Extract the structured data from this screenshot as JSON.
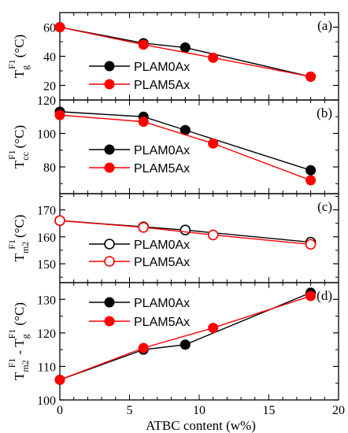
{
  "colors": {
    "PLAM0Ax": "#000000",
    "PLAM5Ax": "#ff0000",
    "axis": "#000000"
  },
  "chart_data": [
    {
      "type": "line",
      "panel_label": "(a)",
      "ylabel": {
        "main": "T",
        "sub": "g",
        "sup": "F1",
        "unit": "(°C)"
      },
      "ylim": [
        10,
        70
      ],
      "yticks": [
        20,
        40,
        60
      ],
      "xlim": [
        0,
        20
      ],
      "legend_position": "center-left",
      "series": [
        {
          "name": "PLAM0Ax",
          "color": "#000000",
          "marker": "filled",
          "x": [
            0,
            6,
            9,
            11,
            18
          ],
          "y": [
            60,
            49,
            46,
            null,
            26
          ]
        },
        {
          "name": "PLAM5Ax",
          "color": "#ff0000",
          "marker": "filled",
          "x": [
            0,
            6,
            9,
            11,
            18
          ],
          "y": [
            60,
            48,
            null,
            39,
            26
          ]
        }
      ]
    },
    {
      "type": "line",
      "panel_label": "(b)",
      "ylabel": {
        "main": "T",
        "sub": "cc",
        "sup": "F1",
        "unit": "(°C)"
      },
      "ylim": [
        64,
        120
      ],
      "yticks": [
        80,
        100,
        120
      ],
      "xlim": [
        0,
        20
      ],
      "legend_position": "center-left",
      "series": [
        {
          "name": "PLAM0Ax",
          "color": "#000000",
          "marker": "filled",
          "x": [
            0,
            6,
            9,
            18
          ],
          "y": [
            113,
            110,
            102,
            78
          ]
        },
        {
          "name": "PLAM5Ax",
          "color": "#ff0000",
          "marker": "filled",
          "x": [
            0,
            6,
            11,
            18
          ],
          "y": [
            111,
            107,
            94,
            72
          ]
        }
      ]
    },
    {
      "type": "line",
      "panel_label": "(c)",
      "ylabel": {
        "main": "T",
        "sub": "m2",
        "sup": "F1",
        "unit": "(°C)"
      },
      "ylim": [
        143,
        176
      ],
      "yticks": [
        150,
        160,
        170
      ],
      "xlim": [
        0,
        20
      ],
      "legend_position": "center-left",
      "series": [
        {
          "name": "PLAM0Ax",
          "color": "#000000",
          "marker": "open",
          "x": [
            0,
            6,
            9,
            18
          ],
          "y": [
            166,
            163.7,
            162.5,
            158
          ]
        },
        {
          "name": "PLAM5Ax",
          "color": "#ff0000",
          "marker": "open",
          "x": [
            0,
            6,
            11,
            18
          ],
          "y": [
            166,
            163.5,
            160.7,
            157.2
          ]
        }
      ]
    },
    {
      "type": "line",
      "panel_label": "(d)",
      "ylabel": {
        "main": "T",
        "sub": "m2",
        "sup": "F1",
        "mid": " - T",
        "sub2": "g",
        "sup2": "F1",
        "unit": " (°C)"
      },
      "ylim": [
        100,
        135
      ],
      "yticks": [
        100,
        110,
        120,
        130
      ],
      "xlim": [
        0,
        20
      ],
      "xticks": [
        0,
        5,
        10,
        15,
        20
      ],
      "xlabel": "ATBC content (w%)",
      "legend_position": "top-left",
      "series": [
        {
          "name": "PLAM0Ax",
          "color": "#000000",
          "marker": "filled",
          "x": [
            0,
            6,
            9,
            18
          ],
          "y": [
            106,
            115,
            116.5,
            132
          ]
        },
        {
          "name": "PLAM5Ax",
          "color": "#ff0000",
          "marker": "filled",
          "x": [
            0,
            6,
            11,
            18
          ],
          "y": [
            106,
            115.5,
            121.5,
            131
          ]
        }
      ]
    }
  ]
}
